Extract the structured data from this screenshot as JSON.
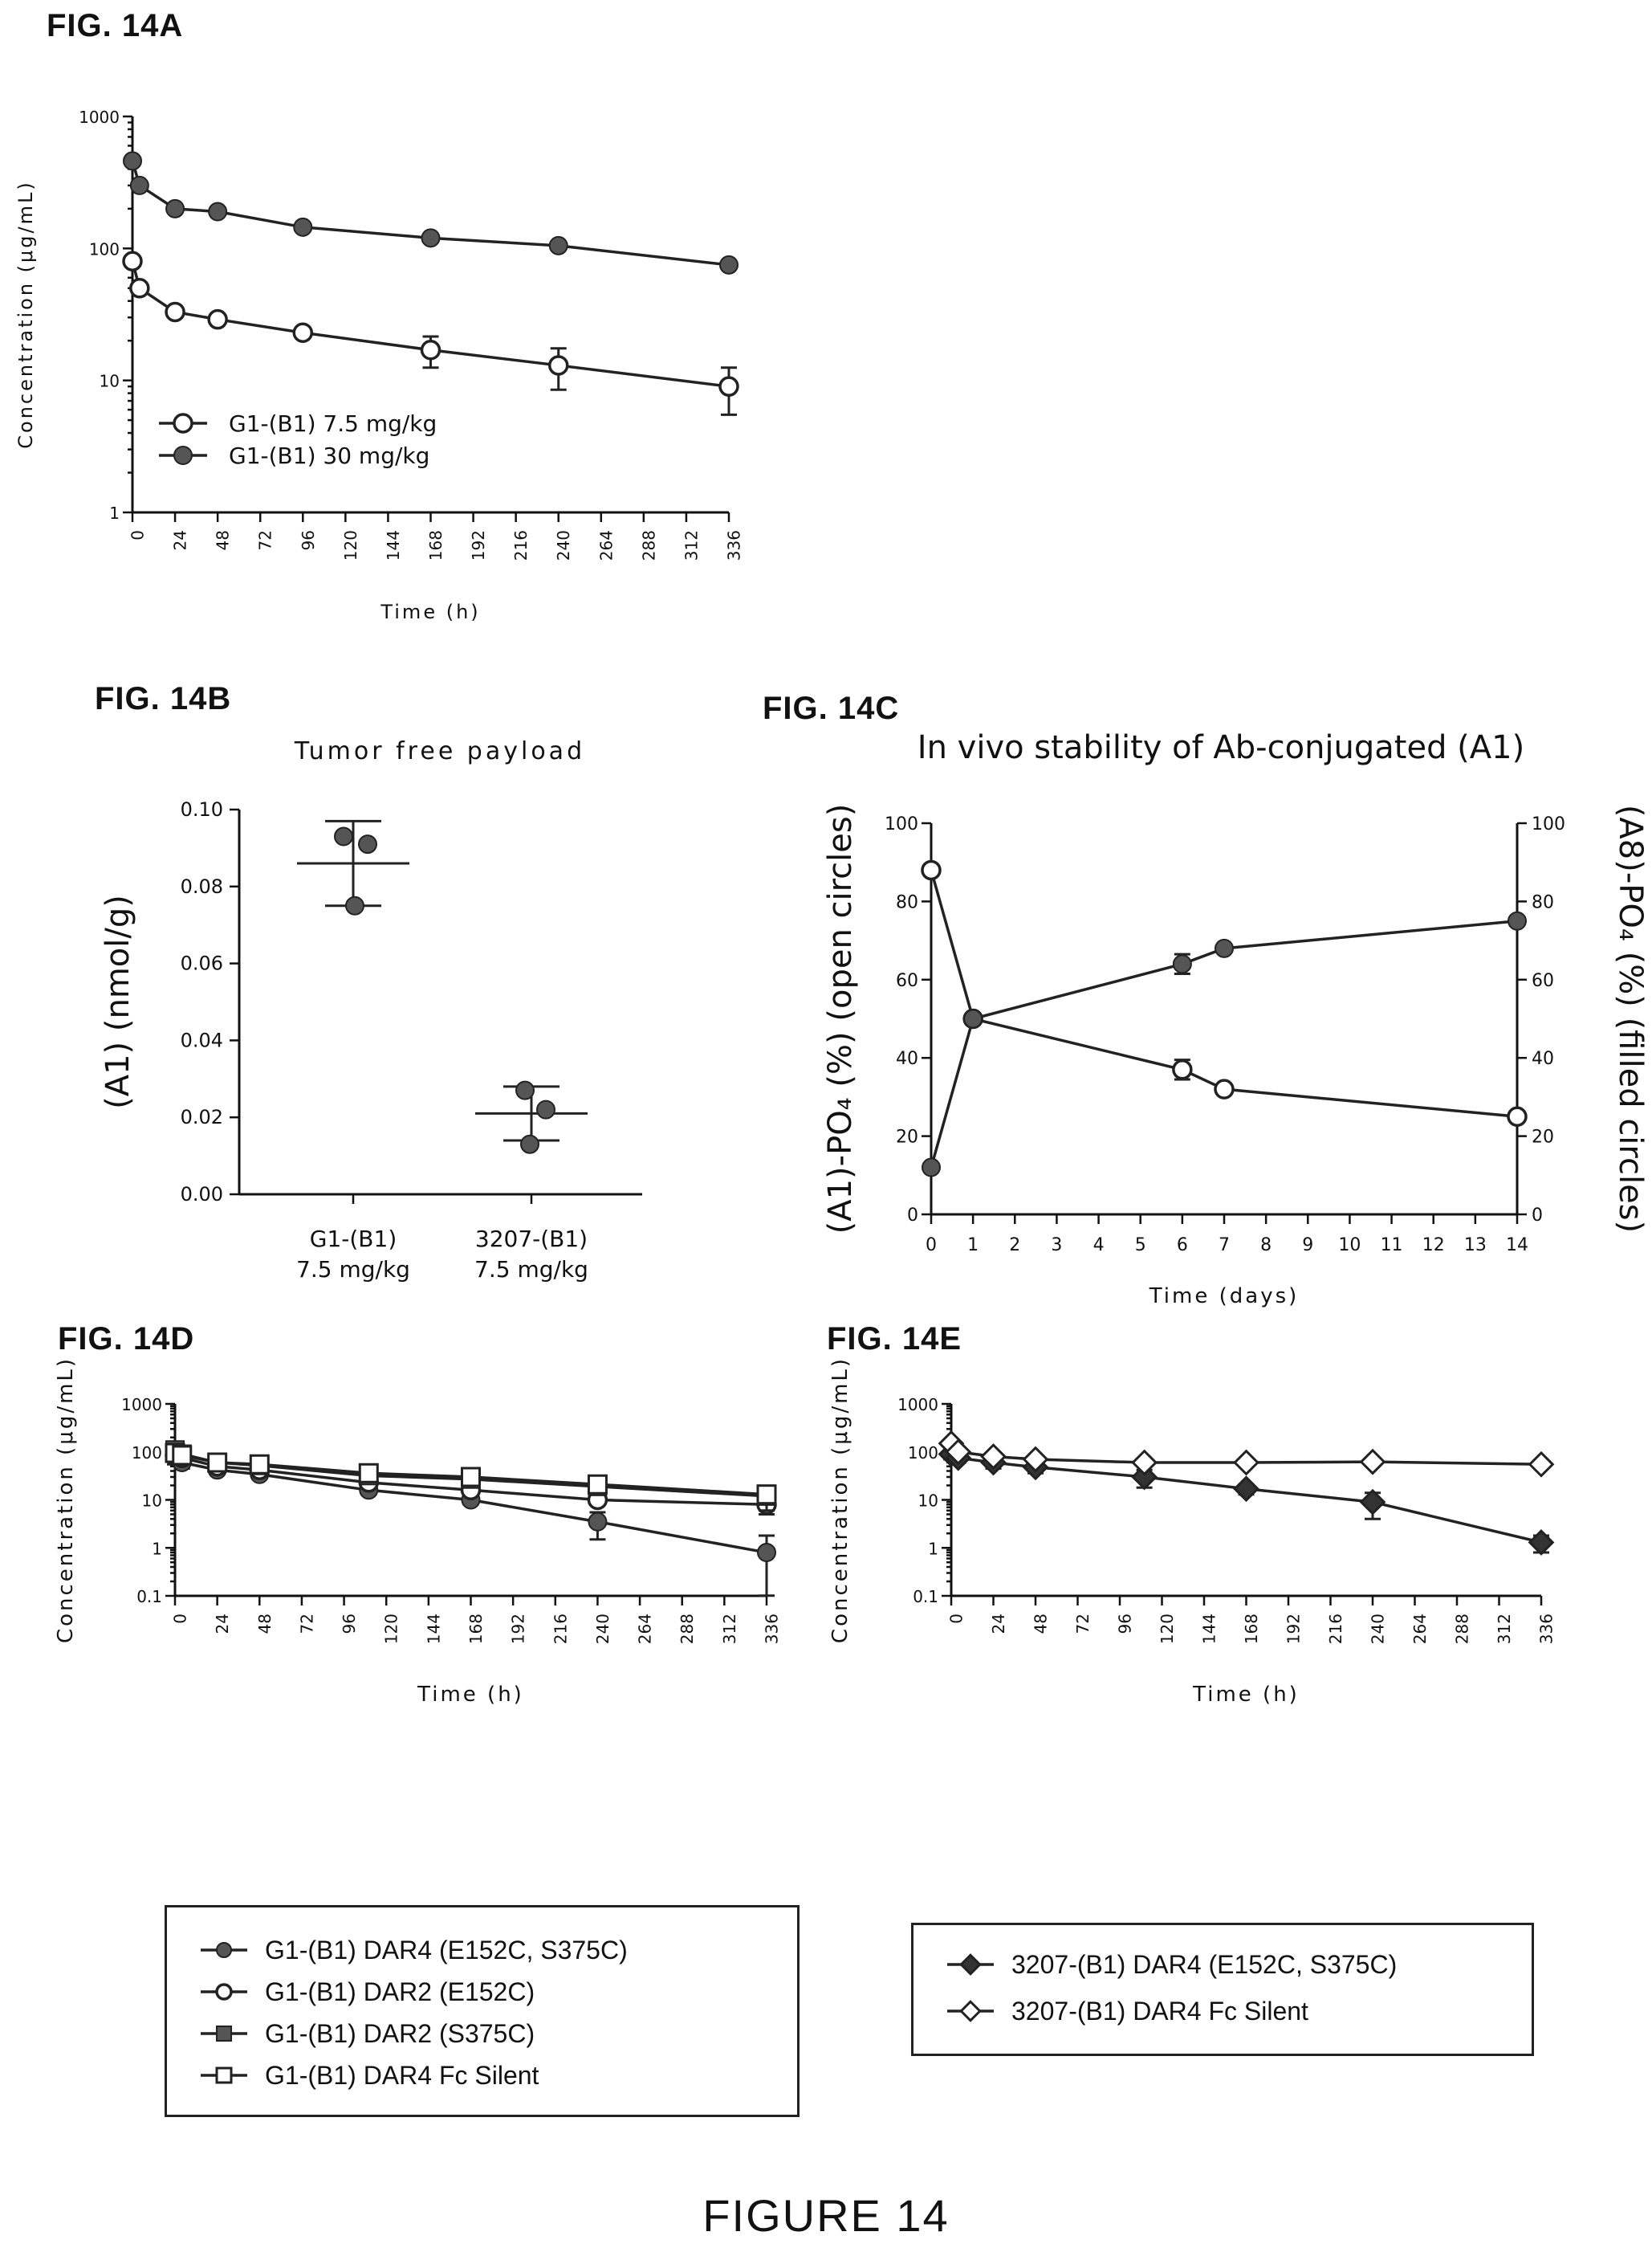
{
  "figure_labels": {
    "a": "FIG. 14A",
    "b": "FIG. 14B",
    "c": "FIG. 14C",
    "d": "FIG. 14D",
    "e": "FIG. 14E"
  },
  "footer": "FIGURE 14",
  "chart_data": [
    {
      "id": "A",
      "type": "line",
      "title": "",
      "xlabel": "Time (h)",
      "ylabel": "Concentration (μg/mL)",
      "yscale": "log",
      "xlim": [
        0,
        336
      ],
      "ylim": [
        1,
        1000
      ],
      "xticks": [
        0,
        24,
        48,
        72,
        96,
        120,
        144,
        168,
        192,
        216,
        240,
        264,
        288,
        312,
        336
      ],
      "yticks": [
        1,
        10,
        100,
        1000
      ],
      "legend_position": "bottom-left",
      "series": [
        {
          "name": "G1-(B1) 7.5 mg/kg",
          "marker": "open-circle",
          "x": [
            0,
            4,
            24,
            48,
            96,
            168,
            240,
            336
          ],
          "y": [
            80,
            50,
            33,
            29,
            23,
            17,
            13,
            9
          ],
          "err": [
            0,
            0,
            0,
            0,
            0,
            4.5,
            4.5,
            3.5
          ]
        },
        {
          "name": "G1-(B1) 30 mg/kg",
          "marker": "filled-circle",
          "x": [
            0,
            4,
            24,
            48,
            96,
            168,
            240,
            336
          ],
          "y": [
            460,
            300,
            200,
            190,
            145,
            120,
            105,
            75
          ],
          "err": [
            0,
            0,
            0,
            0,
            0,
            0,
            0,
            0
          ]
        }
      ]
    },
    {
      "id": "B",
      "type": "scatter",
      "title": "Tumor free payload",
      "xlabel": "",
      "ylabel": "(A1) (nmol/g)",
      "ylim": [
        0,
        0.1
      ],
      "yticks": [
        0.0,
        0.02,
        0.04,
        0.06,
        0.08,
        0.1
      ],
      "ytick_labels": [
        "0.00",
        "0.02",
        "0.04",
        "0.06",
        "0.08",
        "0.10"
      ],
      "categories": [
        {
          "line1": "G1-(B1)",
          "line2": "7.5 mg/kg"
        },
        {
          "line1": "3207-(B1)",
          "line2": "7.5 mg/kg"
        }
      ],
      "groups": [
        {
          "points": [
            0.093,
            0.091,
            0.075
          ],
          "mean": 0.086,
          "sd": 0.011
        },
        {
          "points": [
            0.027,
            0.022,
            0.013
          ],
          "mean": 0.021,
          "sd": 0.007
        }
      ]
    },
    {
      "id": "C",
      "type": "line",
      "title": "In vivo stability of Ab-conjugated (A1)",
      "xlabel": "Time (days)",
      "ylabel_left": "(A1)-PO₄ (%) (open circles)",
      "ylabel_right": "(A8)-PO₄ (%) (filled circles)",
      "xlim": [
        0,
        14
      ],
      "ylim": [
        0,
        100
      ],
      "xticks": [
        0,
        1,
        2,
        3,
        4,
        5,
        6,
        7,
        8,
        9,
        10,
        11,
        12,
        13,
        14
      ],
      "yticks": [
        0,
        20,
        40,
        60,
        80,
        100
      ],
      "series": [
        {
          "name": "(A1)-PO₄",
          "marker": "open-circle",
          "x": [
            0,
            1,
            6,
            7,
            14
          ],
          "y": [
            88,
            50,
            37,
            32,
            25
          ],
          "err": [
            0,
            0,
            2.5,
            0,
            0
          ]
        },
        {
          "name": "(A8)-PO₄",
          "marker": "filled-circle",
          "x": [
            0,
            1,
            6,
            7,
            14
          ],
          "y": [
            12,
            50,
            64,
            68,
            75
          ],
          "err": [
            0,
            0,
            2.5,
            0,
            0
          ]
        }
      ]
    },
    {
      "id": "D",
      "type": "line",
      "title": "",
      "xlabel": "Time (h)",
      "ylabel": "Concentration (μg/mL)",
      "yscale": "log",
      "xlim": [
        0,
        336
      ],
      "ylim": [
        0.1,
        1000
      ],
      "xticks": [
        0,
        24,
        48,
        72,
        96,
        120,
        144,
        168,
        192,
        216,
        240,
        264,
        288,
        312,
        336
      ],
      "yticks": [
        0.1,
        1,
        10,
        100,
        1000
      ],
      "ytick_labels": [
        "0.1",
        "1",
        "10",
        "100",
        "1000"
      ],
      "legend_position": "below",
      "series": [
        {
          "name": "G1-(B1) DAR4 (E152C, S375C)",
          "marker": "filled-circle",
          "x": [
            0,
            4,
            24,
            48,
            110,
            168,
            240,
            336
          ],
          "y": [
            80,
            60,
            42,
            34,
            16,
            10,
            3.5,
            0.8
          ],
          "err": [
            25,
            15,
            0,
            6,
            3,
            2,
            2.0,
            1.0
          ]
        },
        {
          "name": "G1-(B1) DAR2 (E152C)",
          "marker": "open-circle",
          "x": [
            0,
            4,
            24,
            48,
            110,
            168,
            240,
            336
          ],
          "y": [
            85,
            75,
            50,
            42,
            23,
            16,
            10,
            8
          ],
          "err": [
            20,
            15,
            0,
            6,
            4,
            3,
            2,
            3
          ]
        },
        {
          "name": "G1-(B1) DAR2 (S375C)",
          "marker": "filled-square",
          "x": [
            0,
            4,
            24,
            48,
            110,
            168,
            240,
            336
          ],
          "y": [
            110,
            90,
            60,
            52,
            32,
            27,
            19,
            12
          ],
          "err": [
            40,
            20,
            0,
            8,
            6,
            5,
            6,
            6
          ]
        },
        {
          "name": "G1-(B1) DAR4 Fc Silent",
          "marker": "open-square",
          "x": [
            0,
            4,
            24,
            48,
            110,
            168,
            240,
            336
          ],
          "y": [
            95,
            85,
            60,
            55,
            36,
            30,
            21,
            13
          ],
          "err": [
            30,
            20,
            0,
            8,
            6,
            5,
            6,
            5
          ]
        }
      ]
    },
    {
      "id": "E",
      "type": "line",
      "title": "",
      "xlabel": "Time (h)",
      "ylabel": "Concentration (μg/mL)",
      "yscale": "log",
      "xlim": [
        0,
        336
      ],
      "ylim": [
        0.1,
        1000
      ],
      "xticks": [
        0,
        24,
        48,
        72,
        96,
        120,
        144,
        168,
        192,
        216,
        240,
        264,
        288,
        312,
        336
      ],
      "yticks": [
        0.1,
        1,
        10,
        100,
        1000
      ],
      "ytick_labels": [
        "0.1",
        "1",
        "10",
        "100",
        "1000"
      ],
      "legend_position": "below",
      "series": [
        {
          "name": "3207-(B1) DAR4 (E152C, S375C)",
          "marker": "filled-diamond",
          "x": [
            0,
            4,
            24,
            48,
            110,
            168,
            240,
            336
          ],
          "y": [
            90,
            75,
            60,
            48,
            30,
            17,
            9,
            1.3
          ],
          "err": [
            20,
            15,
            15,
            12,
            12,
            4,
            5,
            0.5
          ]
        },
        {
          "name": "3207-(B1) DAR4 Fc Silent",
          "marker": "open-diamond",
          "x": [
            0,
            4,
            24,
            48,
            110,
            168,
            240,
            336
          ],
          "y": [
            150,
            100,
            80,
            70,
            60,
            60,
            62,
            55
          ],
          "err": [
            20,
            15,
            10,
            8,
            5,
            5,
            5,
            5
          ]
        }
      ]
    }
  ]
}
